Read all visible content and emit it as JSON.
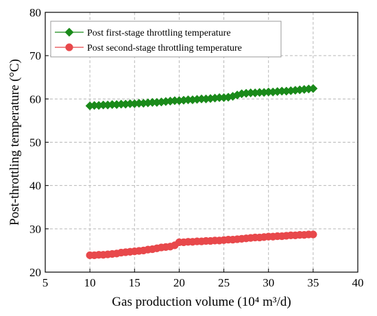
{
  "chart_data": {
    "type": "line",
    "title": "",
    "xlabel": "Gas production volume (10⁴ m³/d)",
    "ylabel": "Post-throttling temperature (°C)",
    "xlim": [
      5,
      40
    ],
    "ylim": [
      20,
      80
    ],
    "x_ticks": [
      5,
      10,
      15,
      20,
      25,
      30,
      35,
      40
    ],
    "y_ticks": [
      20,
      30,
      40,
      50,
      60,
      70,
      80
    ],
    "grid": true,
    "legend_position": "top-left",
    "x": [
      10,
      10.5,
      11,
      11.5,
      12,
      12.5,
      13,
      13.5,
      14,
      14.5,
      15,
      15.5,
      16,
      16.5,
      17,
      17.5,
      18,
      18.5,
      19,
      19.5,
      20,
      20.5,
      21,
      21.5,
      22,
      22.5,
      23,
      23.5,
      24,
      24.5,
      25,
      25.5,
      26,
      26.5,
      27,
      27.5,
      28,
      28.5,
      29,
      29.5,
      30,
      30.5,
      31,
      31.5,
      32,
      32.5,
      33,
      33.5,
      34,
      34.5,
      35
    ],
    "series": [
      {
        "name": "Post first-stage throttling temperature",
        "color": "#1a8a1a",
        "marker": "diamond",
        "values": [
          58.4,
          58.5,
          58.5,
          58.6,
          58.6,
          58.7,
          58.7,
          58.8,
          58.8,
          58.9,
          58.9,
          59.0,
          59.0,
          59.1,
          59.2,
          59.2,
          59.3,
          59.4,
          59.5,
          59.6,
          59.6,
          59.7,
          59.8,
          59.8,
          59.9,
          60.0,
          60.0,
          60.1,
          60.2,
          60.3,
          60.3,
          60.4,
          60.6,
          60.9,
          61.2,
          61.3,
          61.4,
          61.4,
          61.5,
          61.5,
          61.6,
          61.6,
          61.7,
          61.8,
          61.8,
          61.9,
          62.0,
          62.1,
          62.2,
          62.3,
          62.4
        ]
      },
      {
        "name": "Post second-stage throttling temperature",
        "color": "#e8484b",
        "marker": "circle",
        "values": [
          23.9,
          23.9,
          24.0,
          24.0,
          24.1,
          24.2,
          24.3,
          24.5,
          24.6,
          24.7,
          24.8,
          24.9,
          25.0,
          25.2,
          25.3,
          25.5,
          25.7,
          25.8,
          25.9,
          26.2,
          26.9,
          26.9,
          27.0,
          27.0,
          27.1,
          27.1,
          27.2,
          27.2,
          27.3,
          27.3,
          27.4,
          27.5,
          27.5,
          27.6,
          27.7,
          27.8,
          27.9,
          28.0,
          28.0,
          28.1,
          28.2,
          28.2,
          28.3,
          28.3,
          28.4,
          28.5,
          28.5,
          28.6,
          28.6,
          28.7,
          28.7
        ]
      }
    ]
  }
}
